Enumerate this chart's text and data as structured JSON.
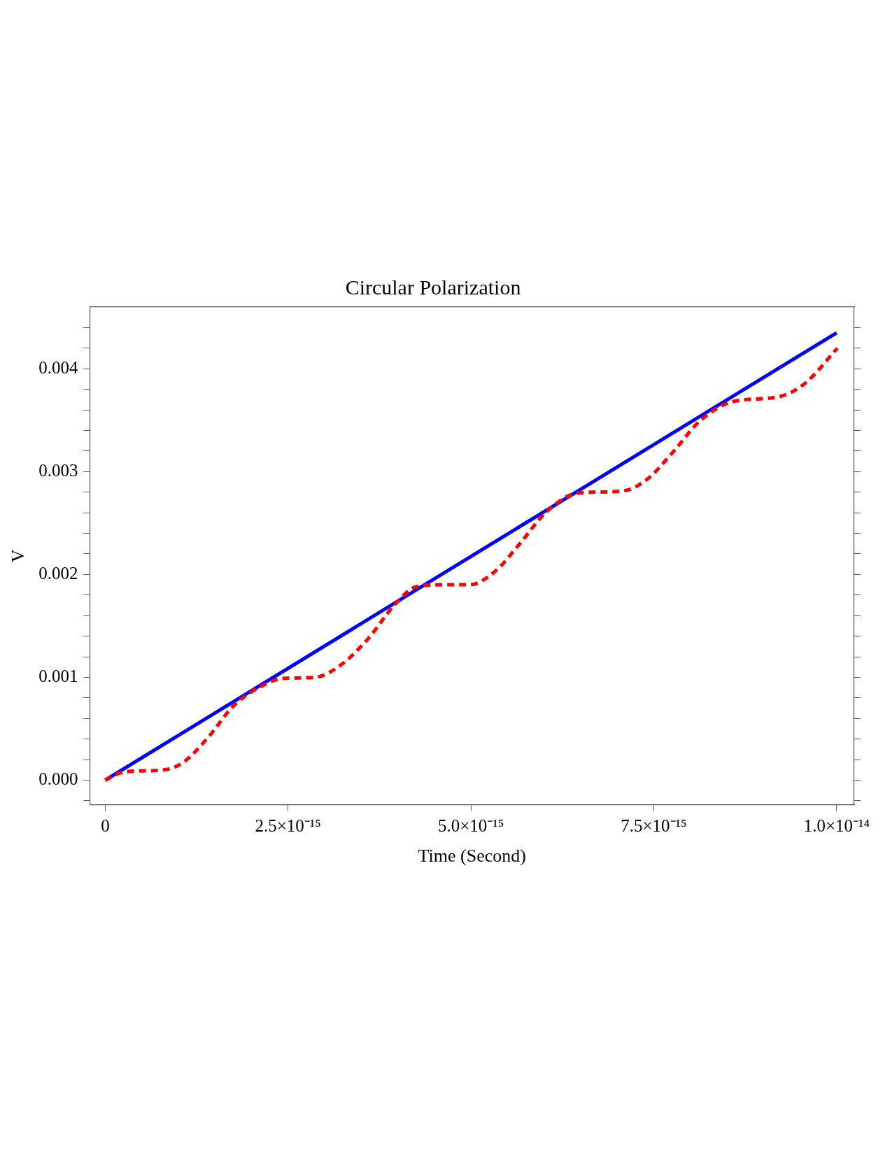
{
  "chart_data": {
    "type": "line",
    "title": "Circular Polarization",
    "xlabel": "Time (Second)",
    "ylabel": "V",
    "xlim": [
      -2.1e-16,
      1.024e-14
    ],
    "ylim": [
      -0.00024,
      0.0046
    ],
    "xticks": [
      0,
      {
        "value": 2.5e-15,
        "label": "2.5×10⁻¹⁵"
      },
      {
        "value": 5e-15,
        "label": "5.0×10⁻¹⁵"
      },
      {
        "value": 7.5e-15,
        "label": "7.5×10⁻¹⁵"
      },
      {
        "value": 1e-14,
        "label": "1.0×10⁻¹⁴"
      }
    ],
    "yticks": [
      {
        "value": -0.0002,
        "label": null
      },
      {
        "value": 0,
        "label": "0.000"
      },
      {
        "value": 0.0002,
        "label": null
      },
      {
        "value": 0.0004,
        "label": null
      },
      {
        "value": 0.0006,
        "label": null
      },
      {
        "value": 0.0008,
        "label": null
      },
      {
        "value": 0.001,
        "label": "0.001"
      },
      {
        "value": 0.0012,
        "label": null
      },
      {
        "value": 0.0014,
        "label": null
      },
      {
        "value": 0.0016,
        "label": null
      },
      {
        "value": 0.0018,
        "label": null
      },
      {
        "value": 0.002,
        "label": "0.002"
      },
      {
        "value": 0.0022,
        "label": null
      },
      {
        "value": 0.0024,
        "label": null
      },
      {
        "value": 0.0026,
        "label": null
      },
      {
        "value": 0.0028,
        "label": null
      },
      {
        "value": 0.003,
        "label": "0.003"
      },
      {
        "value": 0.0032,
        "label": null
      },
      {
        "value": 0.0034,
        "label": null
      },
      {
        "value": 0.0036,
        "label": null
      },
      {
        "value": 0.0038,
        "label": null
      },
      {
        "value": 0.004,
        "label": "0.004"
      },
      {
        "value": 0.0042,
        "label": null
      },
      {
        "value": 0.0044,
        "label": null
      }
    ],
    "marker": "none",
    "series": [
      {
        "color": "#0000ff",
        "line_style": "solid",
        "x": [
          0,
          1e-14
        ],
        "values": [
          0,
          0.00435
        ]
      },
      {
        "color": "#ff0000",
        "line_style": "dashed",
        "x": [
          0,
          2e-16,
          4.6e-16,
          8e-16,
          1.06e-15,
          1.4e-15,
          1.75e-15,
          2.1e-15,
          2.44e-15,
          2.87e-15,
          3.22e-15,
          3.6e-15,
          3.95e-15,
          4.25e-15,
          4.65e-15,
          4.98e-15,
          5.33e-15,
          5.68e-15,
          6.02e-15,
          6.45e-15,
          7.06e-15,
          7.4e-15,
          7.75e-15,
          8.14e-15,
          8.58e-15,
          9.22e-15,
          9.57e-15,
          1.001e-14
        ],
        "values": [
          0,
          7e-05,
          9e-05,
          0.0001,
          0.00017,
          0.00041,
          0.00072,
          0.0009,
          0.00099,
          0.001,
          0.00112,
          0.00138,
          0.0017,
          0.00188,
          0.0019,
          0.0019,
          0.00203,
          0.00231,
          0.0026,
          0.00279,
          0.00281,
          0.00292,
          0.00318,
          0.0035,
          0.00368,
          0.00373,
          0.00386,
          0.0042
        ]
      }
    ]
  }
}
